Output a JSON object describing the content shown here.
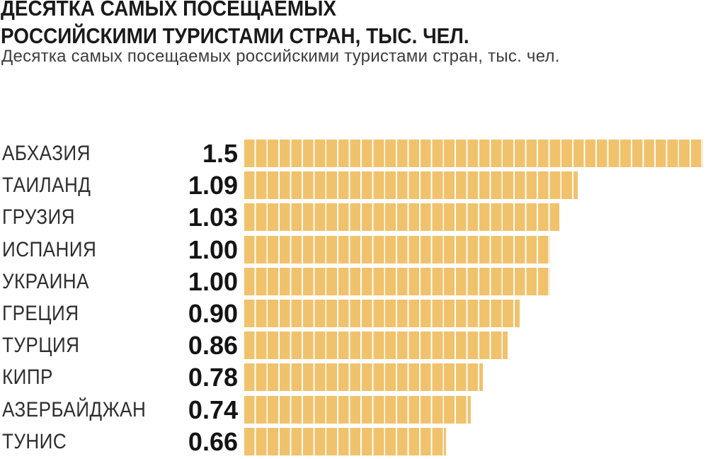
{
  "chart_data": {
    "type": "bar",
    "orientation": "horizontal",
    "title": "ДЕСЯТКА САМЫХ ПОСЕЩАЕМЫХ\nРОССИЙСКИМИ ТУРИСТАМИ СТРАН, ТЫС. ЧЕЛ.",
    "subtitle": "Десятка самых посещаемых российскими туристами стран, тыс. чел.",
    "categories": [
      "АБХАЗИЯ",
      "ТАИЛАНД",
      "ГРУЗИЯ",
      "ИСПАНИЯ",
      "УКРАИНА",
      "ГРЕЦИЯ",
      "ТУРЦИЯ",
      "КИПР",
      "АЗЕРБАЙДЖАН",
      "ТУНИС"
    ],
    "values": [
      1.5,
      1.09,
      1.03,
      1.0,
      1.0,
      0.9,
      0.86,
      0.78,
      0.74,
      0.66
    ],
    "value_labels": [
      "1.5",
      "1.09",
      "1.03",
      "1.00",
      "1.00",
      "0.90",
      "0.86",
      "0.78",
      "0.74",
      "0.66"
    ],
    "xlim": [
      0,
      1.5
    ],
    "grid": false,
    "legend": false,
    "colors": {
      "bar": "#F1C26C",
      "bar_divider": "#FFFFFF",
      "title": "#1A1A1A",
      "subtitle": "#3D3D3D",
      "category_label": "#2E2E2E",
      "value_label": "#141414"
    }
  }
}
